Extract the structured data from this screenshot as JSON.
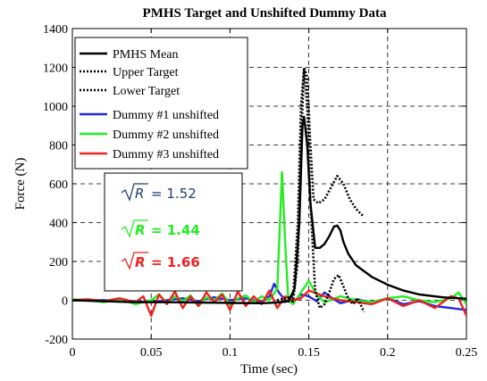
{
  "chart_data": {
    "type": "line",
    "title": "PMHS Target and Unshifted Dummy Data",
    "xlabel": "Time (sec)",
    "ylabel": "Force (N)",
    "xlim": [
      0,
      0.25
    ],
    "ylim": [
      -200,
      1400
    ],
    "xticks": [
      0,
      0.05,
      0.1,
      0.15,
      0.2,
      0.25
    ],
    "xtick_labels": [
      "0",
      "0.05",
      "0.1",
      "0.15",
      "0.2",
      "0.25"
    ],
    "yticks": [
      -200,
      0,
      200,
      400,
      600,
      800,
      1000,
      1200,
      1400
    ],
    "ytick_labels": [
      "-200",
      "0",
      "200",
      "400",
      "600",
      "800",
      "1000",
      "1200",
      "1400"
    ],
    "grid": true,
    "legend_position": "top-left",
    "series": [
      {
        "name": "PMHS Mean",
        "color": "#000000",
        "style": "solid",
        "x": [
          0,
          0.02,
          0.04,
          0.06,
          0.08,
          0.1,
          0.12,
          0.13,
          0.137,
          0.141,
          0.144,
          0.146,
          0.147,
          0.149,
          0.151,
          0.154,
          0.157,
          0.16,
          0.163,
          0.166,
          0.168,
          0.17,
          0.172,
          0.175,
          0.18,
          0.19,
          0.2,
          0.21,
          0.22,
          0.235,
          0.25
        ],
        "y": [
          0,
          -5,
          -10,
          -10,
          -12,
          -14,
          -15,
          -12,
          -5,
          60,
          400,
          900,
          945,
          800,
          500,
          270,
          270,
          290,
          330,
          380,
          385,
          360,
          300,
          240,
          180,
          120,
          80,
          50,
          30,
          15,
          8
        ]
      },
      {
        "name": "Upper Target",
        "color": "#000000",
        "style": "dotted",
        "x": [
          0.13,
          0.14,
          0.143,
          0.145,
          0.147,
          0.149,
          0.151,
          0.153,
          0.156,
          0.16,
          0.164,
          0.168,
          0.172,
          0.176,
          0.18,
          0.185
        ],
        "y": [
          0,
          20,
          400,
          1000,
          1200,
          1150,
          800,
          520,
          500,
          520,
          580,
          640,
          600,
          520,
          470,
          430
        ]
      },
      {
        "name": "Lower Target",
        "color": "#000000",
        "style": "dotted",
        "x": [
          0.13,
          0.14,
          0.143,
          0.145,
          0.147,
          0.149,
          0.151,
          0.154,
          0.157,
          0.16,
          0.163,
          0.166,
          0.169,
          0.172,
          0.175,
          0.178,
          0.181,
          0.185
        ],
        "y": [
          -10,
          -5,
          200,
          800,
          1190,
          1000,
          500,
          50,
          -40,
          -20,
          40,
          110,
          130,
          70,
          10,
          -20,
          10,
          -60
        ]
      },
      {
        "name": "Dummy #1 unshifted",
        "color": "#1f2bd6",
        "style": "solid",
        "x": [
          0,
          0.02,
          0.04,
          0.05,
          0.06,
          0.07,
          0.08,
          0.09,
          0.1,
          0.11,
          0.12,
          0.125,
          0.128,
          0.131,
          0.135,
          0.14,
          0.145,
          0.15,
          0.155,
          0.16,
          0.165,
          0.17,
          0.18,
          0.19,
          0.2,
          0.21,
          0.22,
          0.23,
          0.24,
          0.25
        ],
        "y": [
          0,
          0,
          -5,
          -10,
          0,
          10,
          -5,
          15,
          0,
          10,
          -10,
          20,
          85,
          40,
          0,
          -10,
          30,
          20,
          -5,
          40,
          10,
          -15,
          5,
          -10,
          10,
          -20,
          -5,
          -30,
          -40,
          -50
        ]
      },
      {
        "name": "Dummy #2 unshifted",
        "color": "#22ee22",
        "style": "solid",
        "x": [
          0,
          0.01,
          0.02,
          0.03,
          0.04,
          0.05,
          0.055,
          0.06,
          0.065,
          0.07,
          0.075,
          0.08,
          0.085,
          0.09,
          0.095,
          0.1,
          0.105,
          0.11,
          0.115,
          0.12,
          0.125,
          0.13,
          0.133,
          0.135,
          0.137,
          0.14,
          0.145,
          0.15,
          0.155,
          0.16,
          0.17,
          0.18,
          0.19,
          0.2,
          0.21,
          0.22,
          0.23,
          0.24,
          0.245,
          0.25
        ],
        "y": [
          5,
          0,
          -10,
          5,
          -20,
          0,
          30,
          -15,
          20,
          -5,
          25,
          -30,
          15,
          0,
          35,
          -20,
          10,
          25,
          -10,
          20,
          0,
          60,
          660,
          300,
          0,
          -20,
          40,
          100,
          30,
          -10,
          20,
          0,
          -10,
          10,
          20,
          0,
          -10,
          10,
          40,
          -20
        ]
      },
      {
        "name": "Dummy #3 unshifted",
        "color": "#ee2222",
        "style": "solid",
        "x": [
          0,
          0.01,
          0.02,
          0.03,
          0.04,
          0.045,
          0.05,
          0.055,
          0.06,
          0.065,
          0.07,
          0.075,
          0.08,
          0.085,
          0.09,
          0.095,
          0.1,
          0.105,
          0.11,
          0.115,
          0.12,
          0.125,
          0.13,
          0.135,
          0.14,
          0.145,
          0.15,
          0.16,
          0.17,
          0.18,
          0.19,
          0.2,
          0.21,
          0.22,
          0.23,
          0.24,
          0.245,
          0.25
        ],
        "y": [
          0,
          5,
          -5,
          10,
          -10,
          20,
          -80,
          30,
          -20,
          45,
          -40,
          20,
          -30,
          40,
          -10,
          30,
          -50,
          45,
          -30,
          20,
          -20,
          50,
          -40,
          20,
          0,
          10,
          50,
          20,
          0,
          -10,
          -20,
          10,
          -30,
          0,
          -40,
          20,
          10,
          -80
        ]
      }
    ],
    "annotation": {
      "symbol": "R",
      "lines": [
        {
          "value": "= 1.52",
          "color": "#1f3f6e",
          "bold": false
        },
        {
          "value": "= 1.44",
          "color": "#22ee22",
          "bold": true
        },
        {
          "value": "= 1.66",
          "color": "#ee2222",
          "bold": true
        }
      ]
    }
  }
}
